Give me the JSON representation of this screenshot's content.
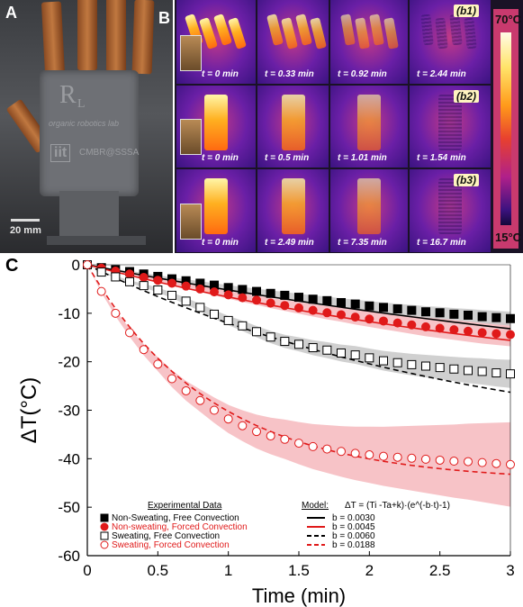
{
  "panels": {
    "a": {
      "label": "A",
      "scale_label": "20 mm",
      "palm_logo": "R",
      "palm_sub": "L",
      "palm_lab": "organic robotics lab",
      "palm_iit": "iit",
      "palm_center": "CMBR@SSSA"
    },
    "b": {
      "label": "B",
      "rows": [
        {
          "tag": "b1",
          "times": [
            "t = 0 min",
            "t = 0.33 min",
            "t = 0.92 min",
            "t = 2.44 min"
          ]
        },
        {
          "tag": "b2",
          "times": [
            "t = 0 min",
            "t = 0.5 min",
            "t = 1.01 min",
            "t = 1.54 min"
          ]
        },
        {
          "tag": "b3",
          "times": [
            "t = 0 min",
            "t = 2.49 min",
            "t = 7.35 min",
            "t = 16.7 min"
          ]
        }
      ],
      "colorbar_max": "70°C",
      "colorbar_min": "15°C"
    },
    "c": {
      "label": "C"
    }
  },
  "chart_data": {
    "type": "scatter",
    "xlabel": "Time (min)",
    "ylabel": "ΔT(°C)",
    "xlim": [
      0,
      3
    ],
    "ylim": [
      -60,
      0
    ],
    "x_ticks": [
      "0",
      "0.5",
      "1",
      "1.5",
      "2",
      "2.5",
      "3"
    ],
    "y_ticks": [
      "0",
      "-10",
      "-20",
      "-30",
      "-40",
      "-50",
      "-60"
    ],
    "legend_title_data": "Experimental Data",
    "legend_title_model": "Model:",
    "model_equation": "ΔT = (Ti -Ta+k)·(e^(-b·t)-1)",
    "colors": {
      "black": "#000000",
      "red": "#e01a1a",
      "red_band": "#f6b8bd",
      "grey_band": "#c8c8c8"
    },
    "series": [
      {
        "name": "Non-Sweating, Free Convection",
        "marker": "square-filled",
        "color": "#000000",
        "x": [
          0,
          0.1,
          0.2,
          0.3,
          0.4,
          0.5,
          0.6,
          0.7,
          0.8,
          0.9,
          1.0,
          1.1,
          1.2,
          1.3,
          1.4,
          1.5,
          1.6,
          1.7,
          1.8,
          1.9,
          2.0,
          2.1,
          2.2,
          2.3,
          2.4,
          2.5,
          2.6,
          2.7,
          2.8,
          2.9,
          3.0
        ],
        "y": [
          0,
          -0.6,
          -1.0,
          -1.4,
          -1.9,
          -2.4,
          -2.9,
          -3.3,
          -3.8,
          -4.2,
          -4.7,
          -5.1,
          -5.5,
          -5.9,
          -6.3,
          -6.7,
          -7.1,
          -7.4,
          -7.8,
          -8.1,
          -8.5,
          -8.8,
          -9.1,
          -9.4,
          -9.7,
          -9.9,
          -10.2,
          -10.4,
          -10.7,
          -10.9,
          -11.1
        ]
      },
      {
        "name": "Non-sweating, Forced Convection",
        "marker": "circle-filled",
        "color": "#e01a1a",
        "x": [
          0,
          0.1,
          0.2,
          0.3,
          0.4,
          0.5,
          0.6,
          0.7,
          0.8,
          0.9,
          1.0,
          1.1,
          1.2,
          1.3,
          1.4,
          1.5,
          1.6,
          1.7,
          1.8,
          1.9,
          2.0,
          2.1,
          2.2,
          2.3,
          2.4,
          2.5,
          2.6,
          2.7,
          2.8,
          2.9,
          3.0
        ],
        "y": [
          0,
          -0.7,
          -1.3,
          -1.9,
          -2.6,
          -3.2,
          -3.8,
          -4.4,
          -5.0,
          -5.6,
          -6.2,
          -6.8,
          -7.3,
          -7.9,
          -8.4,
          -8.9,
          -9.4,
          -9.9,
          -10.3,
          -10.8,
          -11.2,
          -11.6,
          -12.0,
          -12.4,
          -12.8,
          -13.1,
          -13.4,
          -13.7,
          -14.0,
          -14.2,
          -14.4
        ]
      },
      {
        "name": "Sweating, Free Convection",
        "marker": "square-open",
        "color": "#000000",
        "x": [
          0,
          0.1,
          0.2,
          0.3,
          0.4,
          0.5,
          0.6,
          0.7,
          0.8,
          0.9,
          1.0,
          1.1,
          1.2,
          1.3,
          1.4,
          1.5,
          1.6,
          1.7,
          1.8,
          1.9,
          2.0,
          2.1,
          2.2,
          2.3,
          2.4,
          2.5,
          2.6,
          2.7,
          2.8,
          2.9,
          3.0
        ],
        "y": [
          0,
          -1.5,
          -2.5,
          -3.5,
          -4.3,
          -5.2,
          -6.3,
          -7.5,
          -8.8,
          -10.2,
          -11.5,
          -12.6,
          -13.8,
          -14.9,
          -15.8,
          -16.4,
          -17.1,
          -17.6,
          -18.2,
          -18.6,
          -19.2,
          -19.8,
          -20.2,
          -20.6,
          -20.9,
          -21.2,
          -21.5,
          -21.8,
          -22.0,
          -22.3,
          -22.5
        ]
      },
      {
        "name": "Sweating, Forced Convection",
        "marker": "circle-open",
        "color": "#e01a1a",
        "x": [
          0,
          0.1,
          0.2,
          0.3,
          0.4,
          0.5,
          0.6,
          0.7,
          0.8,
          0.9,
          1.0,
          1.1,
          1.2,
          1.3,
          1.4,
          1.5,
          1.6,
          1.7,
          1.8,
          1.9,
          2.0,
          2.1,
          2.2,
          2.3,
          2.4,
          2.5,
          2.6,
          2.7,
          2.8,
          2.9,
          3.0
        ],
        "y": [
          0,
          -5.5,
          -10.0,
          -14.0,
          -17.5,
          -20.5,
          -23.5,
          -26.0,
          -28.0,
          -30.0,
          -31.8,
          -33.2,
          -34.4,
          -35.3,
          -36.0,
          -36.8,
          -37.5,
          -38.0,
          -38.5,
          -38.9,
          -39.2,
          -39.5,
          -39.7,
          -39.9,
          -40.1,
          -40.3,
          -40.5,
          -40.6,
          -40.8,
          -41.0,
          -41.2
        ]
      }
    ],
    "models": [
      {
        "label": "b = 0.0030",
        "b": 0.003,
        "final": -13.2,
        "color": "#000000",
        "dash": "solid"
      },
      {
        "label": "b = 0.0045",
        "b": 0.0045,
        "final": -15.6,
        "color": "#e01a1a",
        "dash": "solid"
      },
      {
        "label": "b = 0.0060",
        "b": 0.006,
        "final": -26.3,
        "color": "#000000",
        "dash": "dashed"
      },
      {
        "label": "b = 0.0188",
        "b": 0.0188,
        "final": -43.2,
        "color": "#e01a1a",
        "dash": "dashed"
      }
    ]
  }
}
